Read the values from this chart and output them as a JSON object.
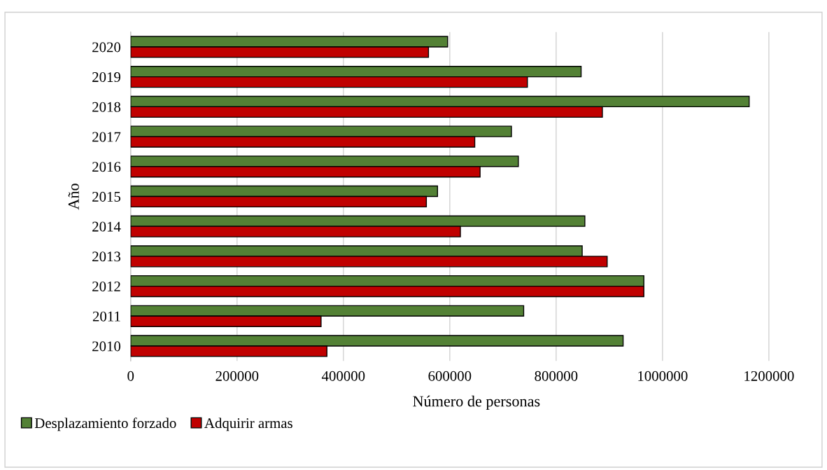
{
  "chart_data": {
    "type": "bar",
    "orientation": "horizontal",
    "xlabel": "Número de personas",
    "ylabel": "Año",
    "categories": [
      "2020",
      "2019",
      "2018",
      "2017",
      "2016",
      "2015",
      "2014",
      "2013",
      "2012",
      "2011",
      "2010"
    ],
    "series": [
      {
        "name": "Desplazamiento forzado",
        "color": "#538135",
        "values": [
          596000,
          847000,
          1163000,
          716000,
          729000,
          577000,
          854000,
          849000,
          965000,
          739000,
          926000
        ]
      },
      {
        "name": "Adquirir armas",
        "color": "#c00000",
        "values": [
          560000,
          746000,
          887000,
          647000,
          657000,
          556000,
          620000,
          896000,
          965000,
          358000,
          369000
        ]
      }
    ],
    "xlim": [
      0,
      1300000
    ],
    "xticks": [
      0,
      200000,
      400000,
      600000,
      800000,
      1000000,
      1200000
    ],
    "grid": "x",
    "legend": "bottom left"
  }
}
